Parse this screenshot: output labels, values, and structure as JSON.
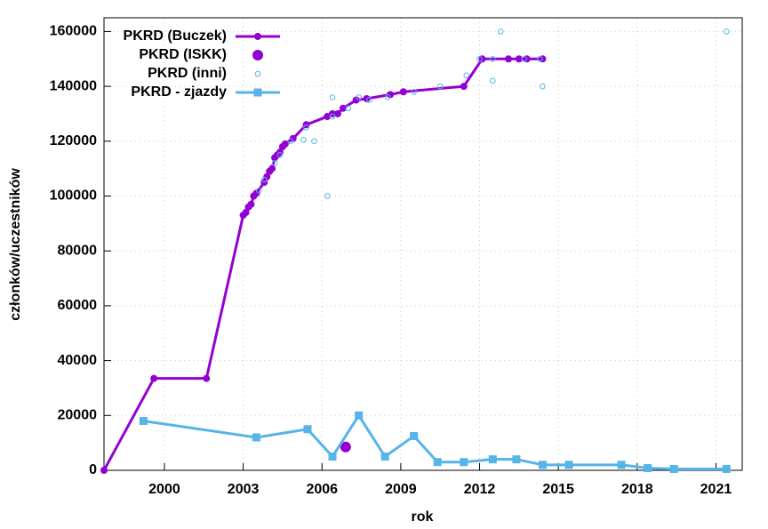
{
  "chart_data": {
    "type": "line",
    "x_label": "rok",
    "y_label": "członków/uczestników",
    "xlim": [
      1997.7,
      2022
    ],
    "ylim": [
      0,
      165000
    ],
    "xticks": [
      2000,
      2003,
      2006,
      2009,
      2012,
      2015,
      2018,
      2021
    ],
    "yticks": [
      0,
      20000,
      40000,
      60000,
      80000,
      100000,
      120000,
      140000,
      160000
    ],
    "grid": true,
    "legend": "top-left",
    "series": [
      {
        "name": "PKRD (Buczek)",
        "color": "#9400d3",
        "line": true,
        "marker": "circle",
        "x": [
          1997.7,
          1999.6,
          2001.6,
          2003.0,
          2003.1,
          2003.2,
          2003.3,
          2003.4,
          2003.5,
          2003.8,
          2003.9,
          2004.0,
          2004.1,
          2004.2,
          2004.3,
          2004.4,
          2004.5,
          2004.6,
          2004.9,
          2005.4,
          2006.2,
          2006.4,
          2006.6,
          2006.8,
          2007.3,
          2007.7,
          2008.6,
          2009.1,
          2011.4,
          2012.1,
          2013.1,
          2013.5,
          2013.8,
          2014.4
        ],
        "values": [
          0,
          33500,
          33500,
          93000,
          94000,
          96000,
          97000,
          100000,
          101000,
          105000,
          107000,
          109000,
          110000,
          114000,
          115000,
          116000,
          118000,
          119000,
          121000,
          126000,
          129000,
          130000,
          130000,
          132000,
          135000,
          135500,
          137000,
          138000,
          140000,
          150000,
          150000,
          150000,
          150000,
          150000
        ]
      },
      {
        "name": "PKRD (ISKK)",
        "color": "#9400d3",
        "line": false,
        "marker": "big-circle",
        "x": [
          2006.9
        ],
        "values": [
          8500
        ]
      },
      {
        "name": "PKRD (inni)",
        "color": "#56b4e9",
        "line": false,
        "marker": "open-circle",
        "x": [
          2003.6,
          2003.8,
          2004.2,
          2004.4,
          2004.8,
          2005.3,
          2005.4,
          2005.7,
          2006.2,
          2006.4,
          2006.4,
          2007.0,
          2007.4,
          2007.8,
          2008.5,
          2009.5,
          2010.5,
          2011.5,
          2012.0,
          2012.5,
          2012.5,
          2012.8,
          2013.7,
          2014.3,
          2014.4,
          2021.4
        ],
        "values": [
          102000,
          106000,
          112000,
          115000,
          120000,
          120500,
          125000,
          120000,
          100000,
          129000,
          136000,
          132000,
          136000,
          135000,
          136000,
          138000,
          140000,
          144000,
          150000,
          150000,
          142000,
          160000,
          150000,
          150000,
          140000,
          160000
        ]
      },
      {
        "name": "PKRD - zjazdy",
        "color": "#56b4e9",
        "line": true,
        "marker": "square",
        "x": [
          1999.2,
          2003.5,
          2005.45,
          2006.4,
          2007.4,
          2008.4,
          2009.5,
          2010.4,
          2011.4,
          2012.5,
          2013.4,
          2014.4,
          2015.4,
          2017.4,
          2018.4,
          2019.4,
          2021.4
        ],
        "values": [
          18000,
          12000,
          15000,
          5000,
          20000,
          5000,
          12500,
          3000,
          3000,
          4000,
          4000,
          2000,
          2000,
          2000,
          800,
          500,
          500
        ]
      }
    ]
  }
}
